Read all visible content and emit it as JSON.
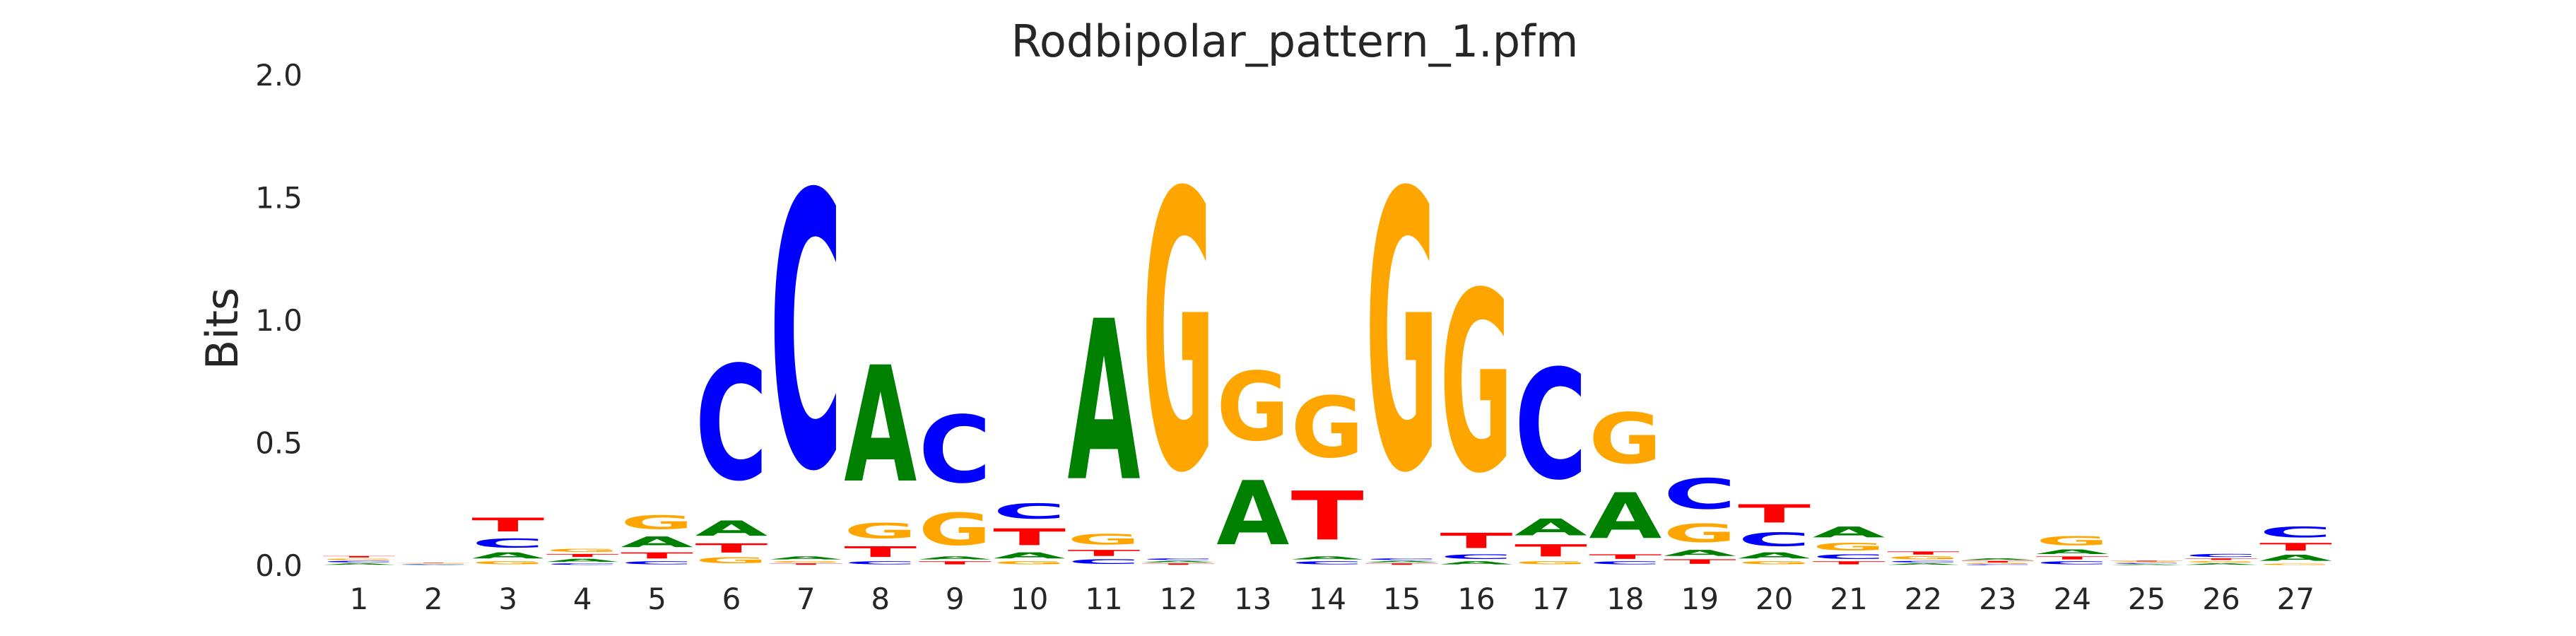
{
  "chart_data": {
    "type": "sequence_logo",
    "title": "Rodbipolar_pattern_1.pfm",
    "xlabel": "",
    "ylabel": "Bits",
    "ylim": [
      0,
      2.0
    ],
    "yticks": [
      "0.0",
      "0.5",
      "1.0",
      "1.5",
      "2.0"
    ],
    "grid": false,
    "colors": {
      "A": "#008000",
      "C": "#0000ff",
      "G": "#ffa500",
      "T": "#ff0000"
    },
    "positions": [
      {
        "position": "1",
        "letters": [
          {
            "base": "A",
            "bits": 0.01
          },
          {
            "base": "C",
            "bits": 0.01
          },
          {
            "base": "G",
            "bits": 0.01
          },
          {
            "base": "T",
            "bits": 0.01
          }
        ]
      },
      {
        "position": "2",
        "letters": [
          {
            "base": "A",
            "bits": 0.003
          },
          {
            "base": "C",
            "bits": 0.003
          },
          {
            "base": "G",
            "bits": 0.003
          },
          {
            "base": "T",
            "bits": 0.003
          }
        ]
      },
      {
        "position": "3",
        "letters": [
          {
            "base": "G",
            "bits": 0.02
          },
          {
            "base": "A",
            "bits": 0.04
          },
          {
            "base": "C",
            "bits": 0.06
          },
          {
            "base": "T",
            "bits": 0.09
          }
        ]
      },
      {
        "position": "4",
        "letters": [
          {
            "base": "C",
            "bits": 0.01
          },
          {
            "base": "A",
            "bits": 0.02
          },
          {
            "base": "T",
            "bits": 0.02
          },
          {
            "base": "G",
            "bits": 0.02
          }
        ]
      },
      {
        "position": "5",
        "letters": [
          {
            "base": "C",
            "bits": 0.02
          },
          {
            "base": "T",
            "bits": 0.04
          },
          {
            "base": "A",
            "bits": 0.07
          },
          {
            "base": "G",
            "bits": 0.09
          }
        ]
      },
      {
        "position": "6",
        "letters": [
          {
            "base": "G",
            "bits": 0.04
          },
          {
            "base": "T",
            "bits": 0.06
          },
          {
            "base": "A",
            "bits": 0.1
          },
          {
            "base": "C",
            "bits": 0.75
          }
        ]
      },
      {
        "position": "7",
        "letters": [
          {
            "base": "T",
            "bits": 0.01
          },
          {
            "base": "G",
            "bits": 0.01
          },
          {
            "base": "A",
            "bits": 0.02
          },
          {
            "base": "C",
            "bits": 1.8
          }
        ]
      },
      {
        "position": "8",
        "letters": [
          {
            "base": "C",
            "bits": 0.02
          },
          {
            "base": "T",
            "bits": 0.07
          },
          {
            "base": "G",
            "bits": 0.1
          },
          {
            "base": "A",
            "bits": 0.76
          }
        ]
      },
      {
        "position": "9",
        "letters": [
          {
            "base": "T",
            "bits": 0.02
          },
          {
            "base": "A",
            "bits": 0.02
          },
          {
            "base": "G",
            "bits": 0.21
          },
          {
            "base": "C",
            "bits": 0.44
          }
        ]
      },
      {
        "position": "10",
        "letters": [
          {
            "base": "G",
            "bits": 0.02
          },
          {
            "base": "A",
            "bits": 0.04
          },
          {
            "base": "T",
            "bits": 0.11
          },
          {
            "base": "C",
            "bits": 0.1
          }
        ]
      },
      {
        "position": "11",
        "letters": [
          {
            "base": "C",
            "bits": 0.03
          },
          {
            "base": "T",
            "bits": 0.04
          },
          {
            "base": "G",
            "bits": 0.07
          },
          {
            "base": "A",
            "bits": 1.05
          }
        ]
      },
      {
        "position": "12",
        "letters": [
          {
            "base": "T",
            "bits": 0.01
          },
          {
            "base": "A",
            "bits": 0.01
          },
          {
            "base": "C",
            "bits": 0.01
          },
          {
            "base": "G",
            "bits": 1.82
          }
        ]
      },
      {
        "position": "13",
        "letters": [
          {
            "base": "A",
            "bits": 0.42
          },
          {
            "base": "G",
            "bits": 0.45
          }
        ]
      },
      {
        "position": "14",
        "letters": [
          {
            "base": "C",
            "bits": 0.02
          },
          {
            "base": "A",
            "bits": 0.02
          },
          {
            "base": "T",
            "bits": 0.32
          },
          {
            "base": "G",
            "bits": 0.4
          }
        ]
      },
      {
        "position": "15",
        "letters": [
          {
            "base": "T",
            "bits": 0.01
          },
          {
            "base": "A",
            "bits": 0.01
          },
          {
            "base": "C",
            "bits": 0.01
          },
          {
            "base": "G",
            "bits": 1.82
          }
        ]
      },
      {
        "position": "16",
        "letters": [
          {
            "base": "A",
            "bits": 0.02
          },
          {
            "base": "C",
            "bits": 0.03
          },
          {
            "base": "T",
            "bits": 0.1
          },
          {
            "base": "G",
            "bits": 1.18
          }
        ]
      },
      {
        "position": "17",
        "letters": [
          {
            "base": "G",
            "bits": 0.02
          },
          {
            "base": "T",
            "bits": 0.08
          },
          {
            "base": "A",
            "bits": 0.11
          },
          {
            "base": "C",
            "bits": 0.72
          }
        ]
      },
      {
        "position": "18",
        "letters": [
          {
            "base": "C",
            "bits": 0.02
          },
          {
            "base": "T",
            "bits": 0.03
          },
          {
            "base": "A",
            "bits": 0.3
          },
          {
            "base": "G",
            "bits": 0.33
          }
        ]
      },
      {
        "position": "19",
        "letters": [
          {
            "base": "T",
            "bits": 0.03
          },
          {
            "base": "A",
            "bits": 0.04
          },
          {
            "base": "G",
            "bits": 0.12
          },
          {
            "base": "C",
            "bits": 0.2
          }
        ]
      },
      {
        "position": "20",
        "letters": [
          {
            "base": "G",
            "bits": 0.02
          },
          {
            "base": "A",
            "bits": 0.04
          },
          {
            "base": "C",
            "bits": 0.09
          },
          {
            "base": "T",
            "bits": 0.12
          }
        ]
      },
      {
        "position": "21",
        "letters": [
          {
            "base": "T",
            "bits": 0.02
          },
          {
            "base": "C",
            "bits": 0.03
          },
          {
            "base": "G",
            "bits": 0.05
          },
          {
            "base": "A",
            "bits": 0.07
          }
        ]
      },
      {
        "position": "22",
        "letters": [
          {
            "base": "A",
            "bits": 0.01
          },
          {
            "base": "C",
            "bits": 0.01
          },
          {
            "base": "G",
            "bits": 0.02
          },
          {
            "base": "T",
            "bits": 0.02
          }
        ]
      },
      {
        "position": "23",
        "letters": [
          {
            "base": "C",
            "bits": 0.005
          },
          {
            "base": "G",
            "bits": 0.005
          },
          {
            "base": "T",
            "bits": 0.01
          },
          {
            "base": "A",
            "bits": 0.01
          }
        ]
      },
      {
        "position": "24",
        "letters": [
          {
            "base": "C",
            "bits": 0.02
          },
          {
            "base": "T",
            "bits": 0.02
          },
          {
            "base": "A",
            "bits": 0.03
          },
          {
            "base": "G",
            "bits": 0.06
          }
        ]
      },
      {
        "position": "25",
        "letters": [
          {
            "base": "A",
            "bits": 0.005
          },
          {
            "base": "C",
            "bits": 0.005
          },
          {
            "base": "G",
            "bits": 0.005
          },
          {
            "base": "T",
            "bits": 0.005
          }
        ]
      },
      {
        "position": "26",
        "letters": [
          {
            "base": "A",
            "bits": 0.01
          },
          {
            "base": "G",
            "bits": 0.01
          },
          {
            "base": "T",
            "bits": 0.01
          },
          {
            "base": "C",
            "bits": 0.02
          }
        ]
      },
      {
        "position": "27",
        "letters": [
          {
            "base": "G",
            "bits": 0.01
          },
          {
            "base": "A",
            "bits": 0.04
          },
          {
            "base": "T",
            "bits": 0.05
          },
          {
            "base": "C",
            "bits": 0.07
          }
        ]
      }
    ]
  }
}
